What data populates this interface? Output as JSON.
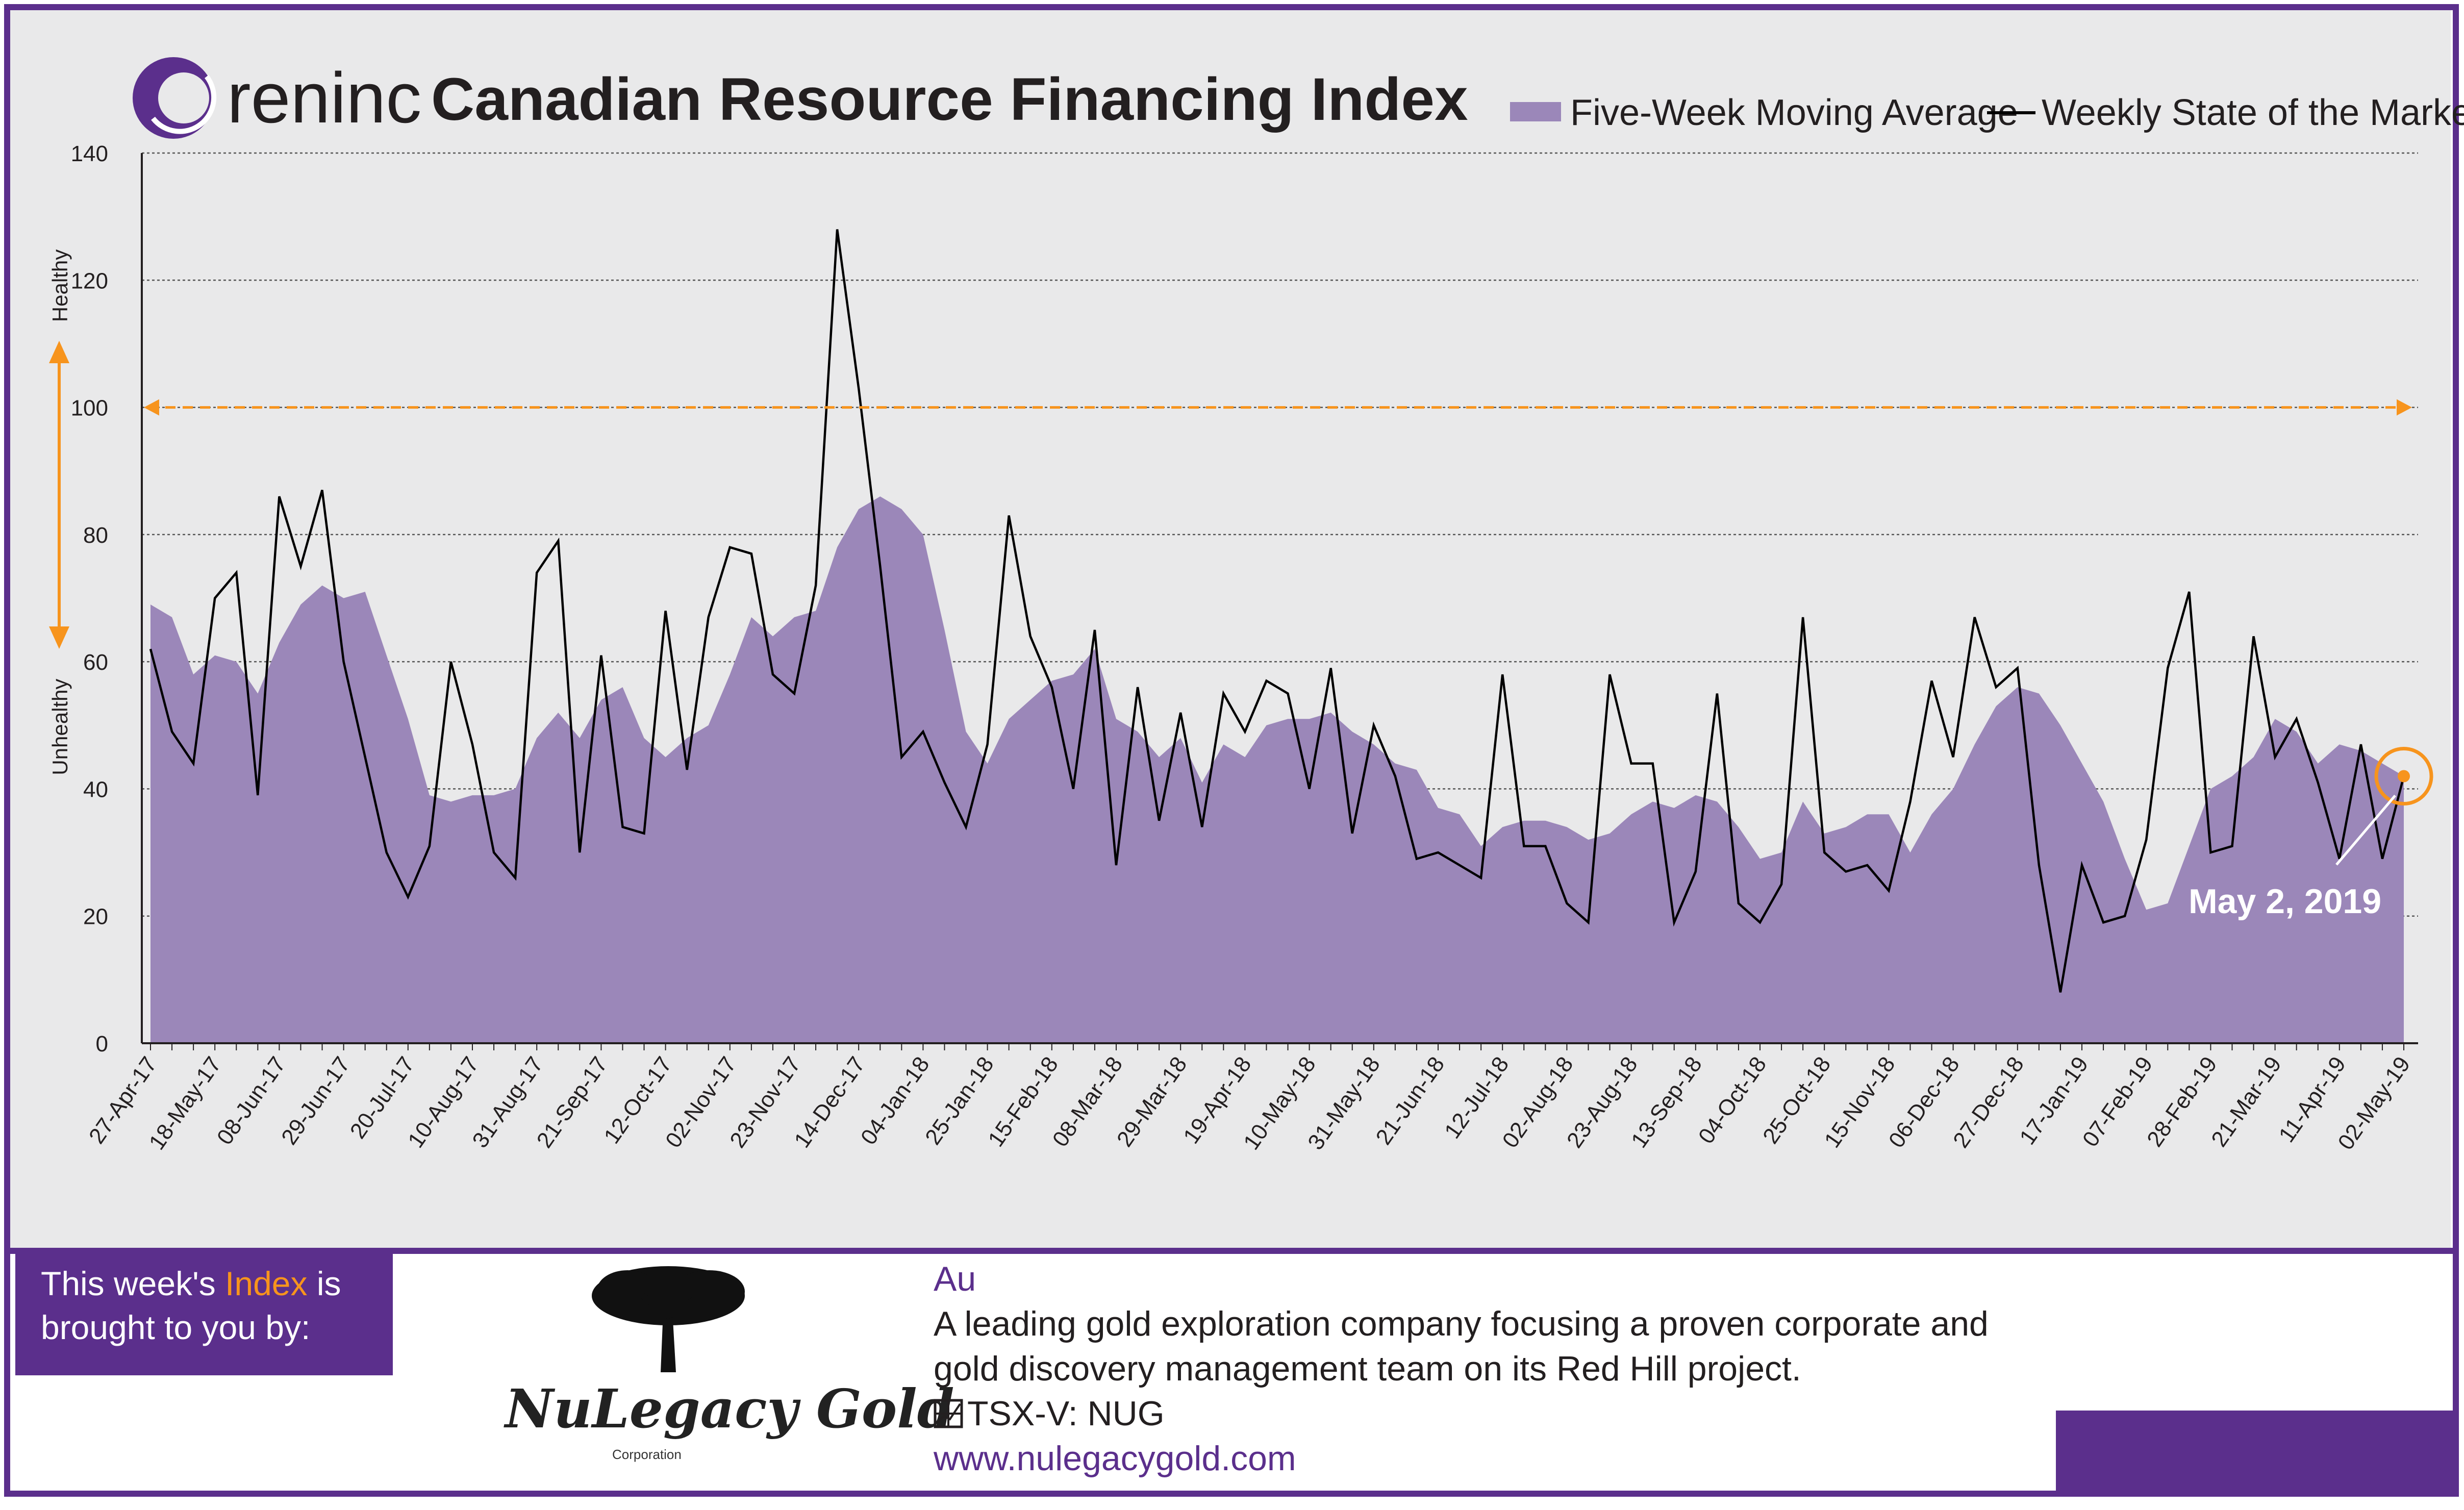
{
  "header": {
    "brand": "reninc",
    "title": "Canadian Resource Financing Index"
  },
  "legend": {
    "area_label": "Five-Week Moving Average",
    "line_label": "Weekly State of the Market"
  },
  "zones": {
    "healthy": "Healthy",
    "unhealthy": "Unhealthy"
  },
  "callout": {
    "label": "May 2, 2019"
  },
  "sponsor": {
    "line1_prefix": "This week's ",
    "line1_highlight": "Index",
    "line1_suffix": " is",
    "line2": "brought to you by:"
  },
  "company": {
    "name": "NuLegacy Gold",
    "subname": "Corporation",
    "tag": "Au",
    "desc1": "A leading gold exploration company focusing a proven corporate and",
    "desc2": "gold discovery management team on its Red Hill project.",
    "ticker": "TSX-V: NUG",
    "url": "www.nulegacygold.com"
  },
  "colors": {
    "purple": "#5b2f8c",
    "area": "#9b87b9",
    "orange": "#f7941d",
    "background": "#e9e9ea"
  },
  "chart_data": {
    "type": "area",
    "ylim": [
      0,
      140
    ],
    "yticks": [
      0,
      20,
      40,
      60,
      80,
      100,
      120,
      140
    ],
    "threshold": 100,
    "grid": true,
    "legend_position": "top-right",
    "x_tick_labels": [
      "27-Apr-17",
      "18-May-17",
      "08-Jun-17",
      "29-Jun-17",
      "20-Jul-17",
      "10-Aug-17",
      "31-Aug-17",
      "21-Sep-17",
      "12-Oct-17",
      "02-Nov-17",
      "23-Nov-17",
      "14-Dec-17",
      "04-Jan-18",
      "25-Jan-18",
      "15-Feb-18",
      "08-Mar-18",
      "29-Mar-18",
      "19-Apr-18",
      "10-May-18",
      "31-May-18",
      "21-Jun-18",
      "12-Jul-18",
      "02-Aug-18",
      "23-Aug-18",
      "13-Sep-18",
      "04-Oct-18",
      "25-Oct-18",
      "15-Nov-18",
      "06-Dec-18",
      "27-Dec-18",
      "17-Jan-19",
      "07-Feb-19",
      "28-Feb-19",
      "21-Mar-19",
      "11-Apr-19",
      "02-May-19"
    ],
    "series": [
      {
        "name": "Five-Week Moving Average",
        "type": "area",
        "values": [
          69,
          67,
          58,
          61,
          60,
          55,
          63,
          69,
          72,
          70,
          71,
          61,
          51,
          39,
          38,
          39,
          39,
          40,
          48,
          52,
          48,
          54,
          56,
          48,
          45,
          48,
          50,
          58,
          67,
          64,
          67,
          68,
          78,
          84,
          86,
          84,
          80,
          65,
          49,
          44,
          51,
          54,
          57,
          58,
          62,
          51,
          49,
          45,
          48,
          41,
          47,
          45,
          50,
          51,
          51,
          52,
          49,
          47,
          44,
          43,
          37,
          36,
          31,
          34,
          35,
          35,
          34,
          32,
          33,
          36,
          38,
          37,
          39,
          38,
          34,
          29,
          30,
          38,
          33,
          34,
          36,
          36,
          30,
          36,
          40,
          47,
          53,
          56,
          55,
          50,
          44,
          38,
          29,
          21,
          22,
          31,
          40,
          42,
          45,
          51,
          49,
          44,
          47,
          46,
          44,
          42
        ]
      },
      {
        "name": "Weekly State of the Market",
        "type": "line",
        "values": [
          62,
          49,
          44,
          70,
          74,
          39,
          86,
          75,
          87,
          60,
          45,
          30,
          23,
          31,
          60,
          47,
          30,
          26,
          74,
          79,
          30,
          61,
          34,
          33,
          68,
          43,
          67,
          78,
          77,
          58,
          55,
          72,
          128,
          103,
          75,
          45,
          49,
          41,
          34,
          47,
          83,
          64,
          56,
          40,
          65,
          28,
          56,
          35,
          52,
          34,
          55,
          49,
          57,
          55,
          40,
          59,
          33,
          50,
          42,
          29,
          30,
          28,
          26,
          58,
          31,
          31,
          22,
          19,
          58,
          44,
          44,
          19,
          27,
          55,
          22,
          19,
          25,
          67,
          30,
          27,
          28,
          24,
          38,
          57,
          45,
          67,
          56,
          59,
          28,
          8,
          28,
          19,
          20,
          32,
          59,
          71,
          30,
          31,
          64,
          45,
          51,
          41,
          29,
          47,
          29,
          42
        ]
      }
    ],
    "highlight": {
      "label": "May 2, 2019",
      "value": 42
    }
  }
}
